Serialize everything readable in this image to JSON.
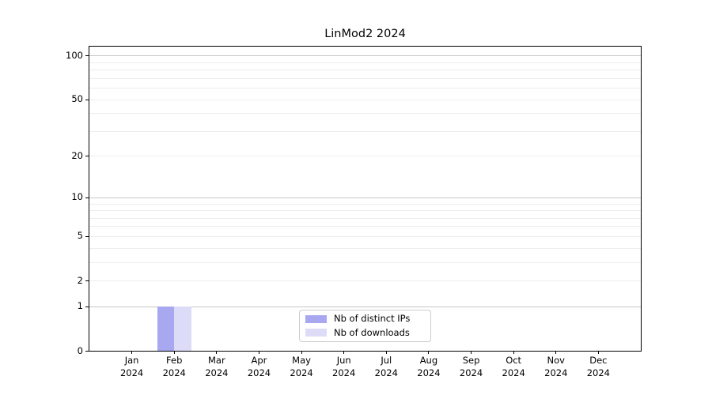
{
  "chart_data": {
    "type": "bar",
    "title": "LinMod2 2024",
    "categories": [
      "Jan 2024",
      "Feb 2024",
      "Mar 2024",
      "Apr 2024",
      "May 2024",
      "Jun 2024",
      "Jul 2024",
      "Aug 2024",
      "Sep 2024",
      "Oct 2024",
      "Nov 2024",
      "Dec 2024"
    ],
    "x_tick_months": [
      "Jan",
      "Feb",
      "Mar",
      "Apr",
      "May",
      "Jun",
      "Jul",
      "Aug",
      "Sep",
      "Oct",
      "Nov",
      "Dec"
    ],
    "x_tick_year": "2024",
    "series": [
      {
        "name": "Nb of distinct IPs",
        "color": "#a8a8f0",
        "values": [
          0,
          1,
          0,
          0,
          0,
          0,
          0,
          0,
          0,
          0,
          0,
          0
        ]
      },
      {
        "name": "Nb of downloads",
        "color": "#dcdcf8",
        "values": [
          0,
          1,
          0,
          0,
          0,
          0,
          0,
          0,
          0,
          0,
          0,
          0
        ]
      }
    ],
    "yscale": "log10(1+y)",
    "ylim": [
      0,
      115
    ],
    "y_tick_values": [
      0,
      1,
      2,
      5,
      10,
      20,
      50,
      100
    ],
    "y_tick_labels": [
      "0",
      "1",
      "2",
      "5",
      "10",
      "20",
      "50",
      "100"
    ],
    "y_emphasized_gridlines": [
      1,
      10,
      100
    ],
    "y_faint_gridlines": [
      2,
      3,
      4,
      5,
      6,
      7,
      8,
      9,
      20,
      30,
      40,
      50,
      60,
      70,
      80,
      90
    ],
    "grid": "horizontal",
    "legend_position": "bottom-center-inside"
  },
  "colors": {
    "background": "#ffffff",
    "spine": "#000000",
    "grid_major": "#c6c6c6",
    "grid_minor": "#ededed",
    "text": "#000000",
    "legend_border": "#cccccc",
    "legend_background": "#ffffff"
  }
}
